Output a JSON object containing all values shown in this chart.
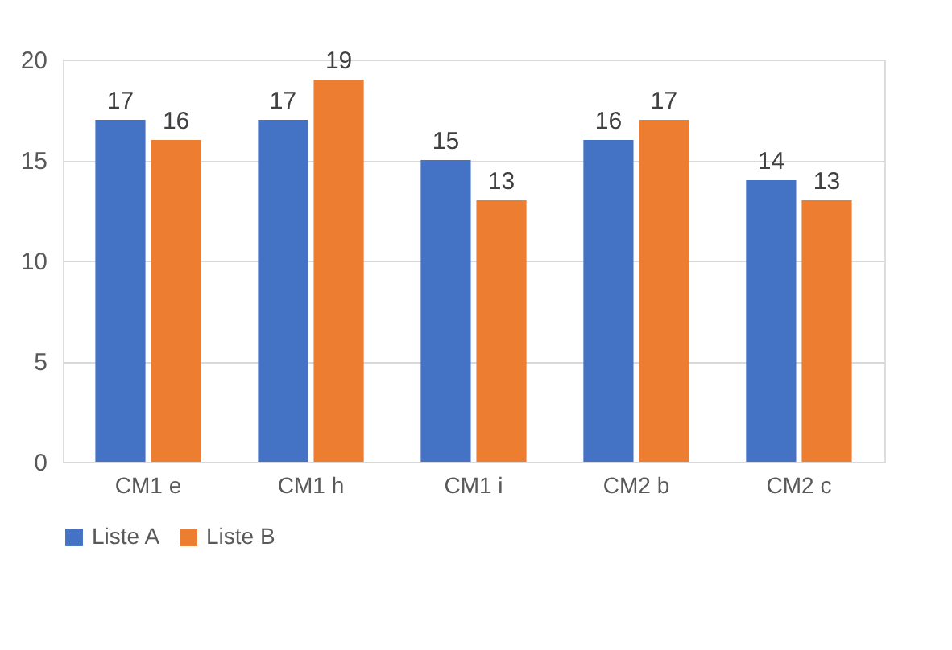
{
  "chart_data": {
    "type": "bar",
    "categories": [
      "CM1 e",
      "CM1 h",
      "CM1 i",
      "CM2 b",
      "CM2 c"
    ],
    "series": [
      {
        "name": "Liste A",
        "color": "#4472c4",
        "values": [
          17,
          17,
          15,
          16,
          14
        ]
      },
      {
        "name": "Liste B",
        "color": "#ed7d31",
        "values": [
          16,
          19,
          13,
          17,
          13
        ]
      }
    ],
    "ylim": [
      0,
      20
    ],
    "yticks": [
      0,
      5,
      10,
      15,
      20
    ],
    "grid": "y",
    "legend": "bottom",
    "data_labels": true
  }
}
